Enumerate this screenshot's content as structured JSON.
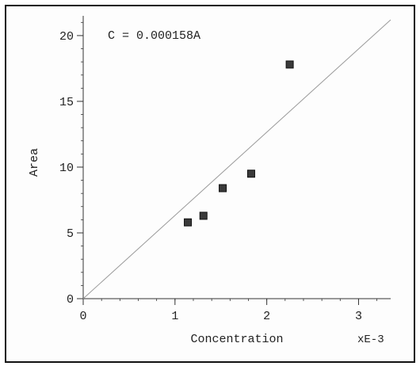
{
  "chart_data": {
    "type": "scatter",
    "title": "",
    "annotation": "C = 0.000158A",
    "xlabel": "Concentration",
    "x_multiplier_label": "xE-3",
    "ylabel": "Area",
    "xlim": [
      0,
      3.35
    ],
    "ylim": [
      0,
      21.5
    ],
    "x_ticks": [
      {
        "value": 0,
        "label": "0"
      },
      {
        "value": 1,
        "label": "1"
      },
      {
        "value": 2,
        "label": "2"
      },
      {
        "value": 3,
        "label": "3"
      }
    ],
    "y_ticks": [
      {
        "value": 0,
        "label": "0"
      },
      {
        "value": 5,
        "label": "5"
      },
      {
        "value": 10,
        "label": "10"
      },
      {
        "value": 15,
        "label": "15"
      },
      {
        "value": 20,
        "label": "20"
      }
    ],
    "points": [
      {
        "x": 1.14,
        "y": 5.8
      },
      {
        "x": 1.31,
        "y": 6.3
      },
      {
        "x": 1.52,
        "y": 8.4
      },
      {
        "x": 1.83,
        "y": 9.5
      },
      {
        "x": 2.25,
        "y": 17.8
      }
    ],
    "fit_line": {
      "x": [
        0,
        3.35
      ],
      "y": [
        0,
        21.2
      ]
    },
    "grid": false,
    "colors": {
      "marker_fill": "#3a3a3a",
      "marker_edge": "#111111",
      "line": "#9a9a9a",
      "axis": "#333333",
      "text": "#222222"
    }
  }
}
